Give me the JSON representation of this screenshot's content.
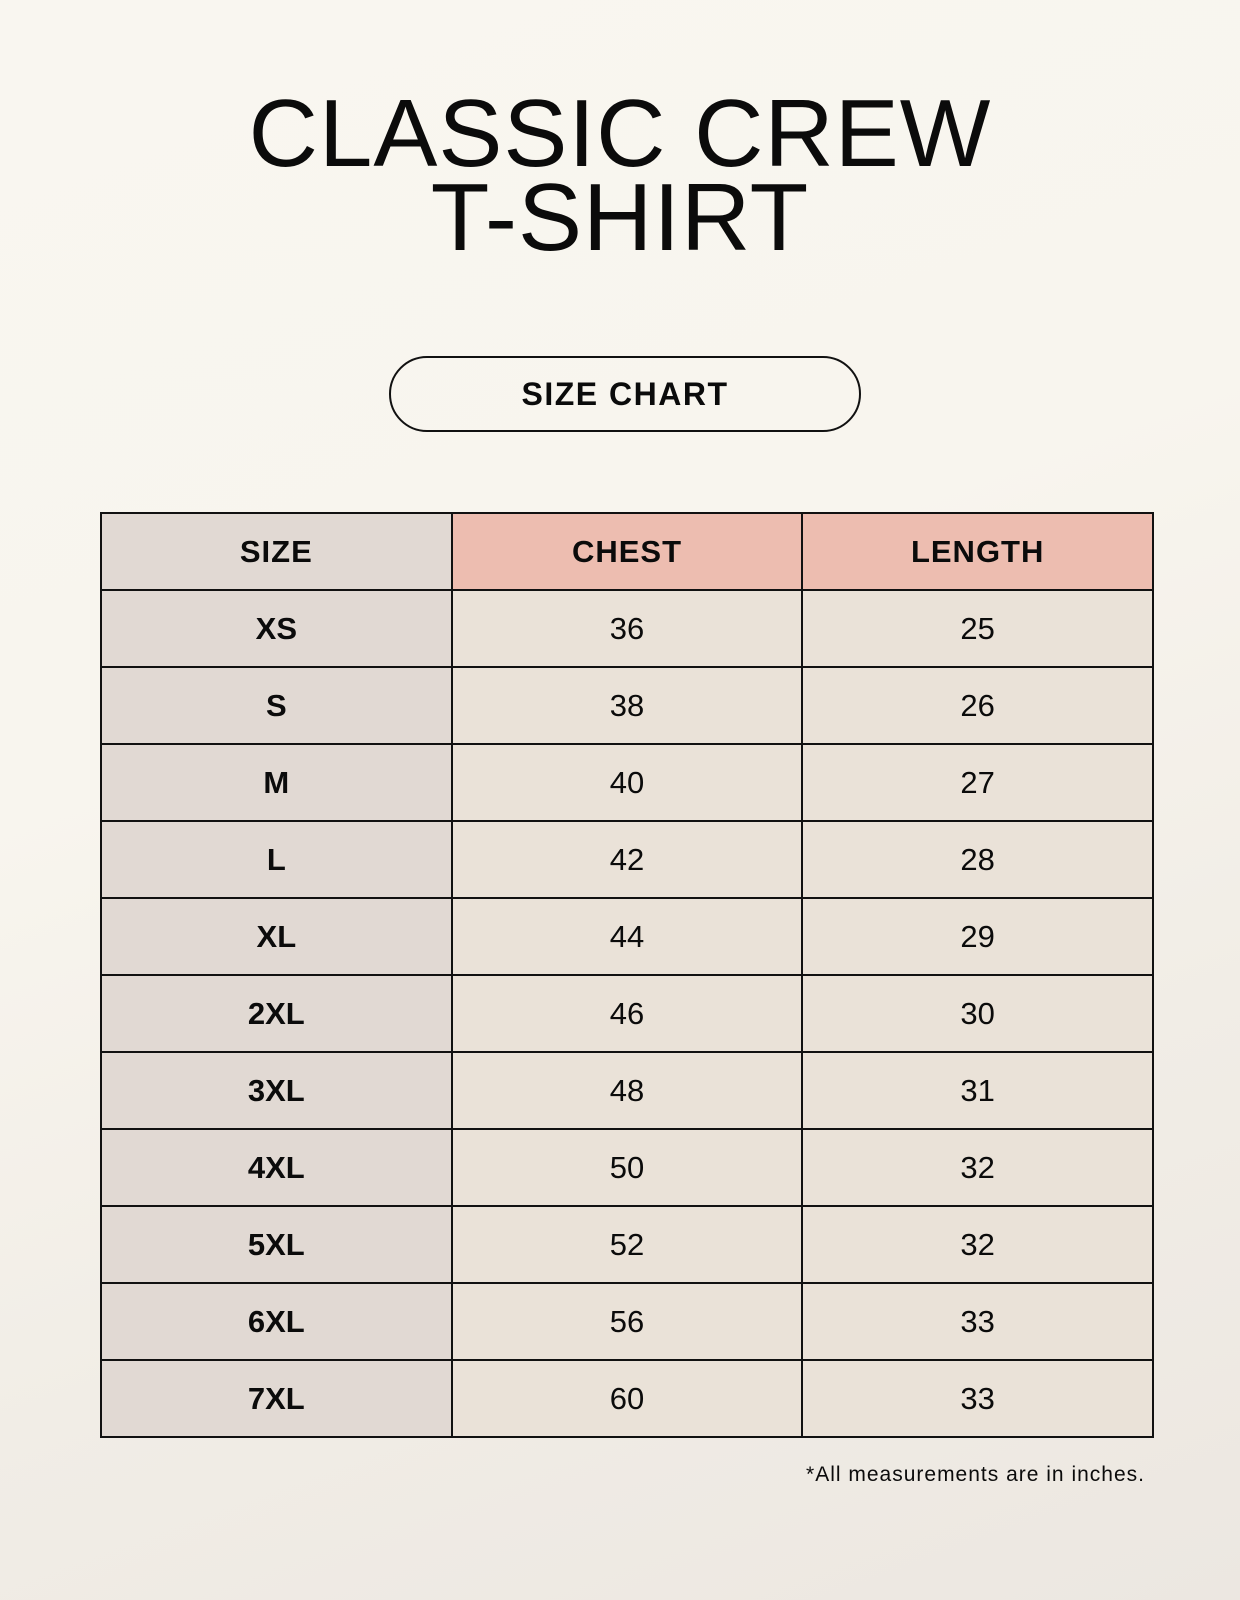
{
  "title_line1": "CLASSIC CREW",
  "title_line2": "T-SHIRT",
  "badge": "SIZE CHART",
  "table": {
    "headers": [
      "SIZE",
      "CHEST",
      "LENGTH"
    ],
    "rows": [
      [
        "XS",
        "36",
        "25"
      ],
      [
        "S",
        "38",
        "26"
      ],
      [
        "M",
        "40",
        "27"
      ],
      [
        "L",
        "42",
        "28"
      ],
      [
        "XL",
        "44",
        "29"
      ],
      [
        "2XL",
        "46",
        "30"
      ],
      [
        "3XL",
        "48",
        "31"
      ],
      [
        "4XL",
        "50",
        "32"
      ],
      [
        "5XL",
        "52",
        "32"
      ],
      [
        "6XL",
        "56",
        "33"
      ],
      [
        "7XL",
        "60",
        "33"
      ]
    ]
  },
  "footnote": "*All measurements are in inches.",
  "colors": {
    "header_accent": "#edbdb0",
    "size_column": "#e1d9d3",
    "cells": "#eae2d8"
  }
}
